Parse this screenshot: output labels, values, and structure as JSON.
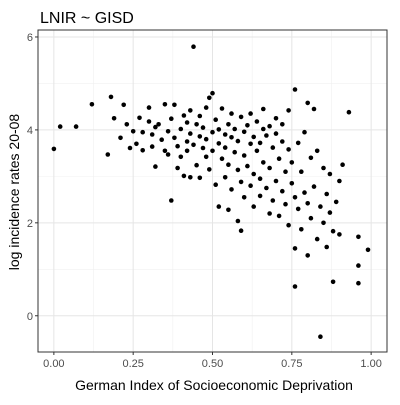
{
  "chart_data": {
    "type": "scatter",
    "title": "LNIR ~ GISD",
    "xlabel": "German Index of Socioeconomic Deprivation",
    "ylabel": "log incidence rates 20-08",
    "xlim": [
      -0.05,
      1.05
    ],
    "ylim": [
      -0.78,
      6.15
    ],
    "x_ticks": [
      "0.00",
      "0.25",
      "0.50",
      "0.75",
      "1.00"
    ],
    "y_ticks": [
      "0",
      "2",
      "4",
      "6"
    ],
    "grid": true,
    "point_color": "#000000",
    "points": [
      [
        0.0,
        3.59
      ],
      [
        0.02,
        4.07
      ],
      [
        0.07,
        4.07
      ],
      [
        0.12,
        4.55
      ],
      [
        0.17,
        3.47
      ],
      [
        0.18,
        4.71
      ],
      [
        0.19,
        4.25
      ],
      [
        0.21,
        3.83
      ],
      [
        0.22,
        4.54
      ],
      [
        0.23,
        4.12
      ],
      [
        0.24,
        3.61
      ],
      [
        0.25,
        3.97
      ],
      [
        0.26,
        3.7
      ],
      [
        0.27,
        4.26
      ],
      [
        0.28,
        3.95
      ],
      [
        0.28,
        3.56
      ],
      [
        0.3,
        4.18
      ],
      [
        0.3,
        4.48
      ],
      [
        0.31,
        3.64
      ],
      [
        0.31,
        3.9
      ],
      [
        0.32,
        4.06
      ],
      [
        0.32,
        3.21
      ],
      [
        0.33,
        4.12
      ],
      [
        0.34,
        3.79
      ],
      [
        0.35,
        3.55
      ],
      [
        0.35,
        4.55
      ],
      [
        0.36,
        3.97
      ],
      [
        0.36,
        3.47
      ],
      [
        0.37,
        4.24
      ],
      [
        0.37,
        2.48
      ],
      [
        0.38,
        3.83
      ],
      [
        0.38,
        4.54
      ],
      [
        0.39,
        3.18
      ],
      [
        0.39,
        3.65
      ],
      [
        0.4,
        4.02
      ],
      [
        0.4,
        3.42
      ],
      [
        0.41,
        4.31
      ],
      [
        0.41,
        3.01
      ],
      [
        0.42,
        3.75
      ],
      [
        0.42,
        4.16
      ],
      [
        0.42,
        3.55
      ],
      [
        0.43,
        3.92
      ],
      [
        0.43,
        2.98
      ],
      [
        0.43,
        4.42
      ],
      [
        0.44,
        5.79
      ],
      [
        0.44,
        3.68
      ],
      [
        0.45,
        4.12
      ],
      [
        0.45,
        3.24
      ],
      [
        0.46,
        3.86
      ],
      [
        0.46,
        4.3
      ],
      [
        0.46,
        2.97
      ],
      [
        0.47,
        3.61
      ],
      [
        0.47,
        4.05
      ],
      [
        0.48,
        3.42
      ],
      [
        0.48,
        4.48
      ],
      [
        0.48,
        3.8
      ],
      [
        0.49,
        4.69
      ],
      [
        0.49,
        3.15
      ],
      [
        0.5,
        4.79
      ],
      [
        0.5,
        3.95
      ],
      [
        0.5,
        3.55
      ],
      [
        0.51,
        2.82
      ],
      [
        0.51,
        4.22
      ],
      [
        0.52,
        3.71
      ],
      [
        0.52,
        2.35
      ],
      [
        0.52,
        4.01
      ],
      [
        0.53,
        3.38
      ],
      [
        0.53,
        4.46
      ],
      [
        0.54,
        3.9
      ],
      [
        0.54,
        2.98
      ],
      [
        0.54,
        3.62
      ],
      [
        0.55,
        4.12
      ],
      [
        0.55,
        2.28
      ],
      [
        0.55,
        3.25
      ],
      [
        0.56,
        3.84
      ],
      [
        0.56,
        4.35
      ],
      [
        0.56,
        2.72
      ],
      [
        0.57,
        3.52
      ],
      [
        0.57,
        4.02
      ],
      [
        0.58,
        3.14
      ],
      [
        0.58,
        2.04
      ],
      [
        0.58,
        3.76
      ],
      [
        0.59,
        4.28
      ],
      [
        0.59,
        2.88
      ],
      [
        0.59,
        1.83
      ],
      [
        0.6,
        3.45
      ],
      [
        0.6,
        3.96
      ],
      [
        0.6,
        2.55
      ],
      [
        0.61,
        4.1
      ],
      [
        0.61,
        3.22
      ],
      [
        0.62,
        3.7
      ],
      [
        0.62,
        2.8
      ],
      [
        0.62,
        4.35
      ],
      [
        0.63,
        3.05
      ],
      [
        0.63,
        3.85
      ],
      [
        0.63,
        2.35
      ],
      [
        0.64,
        3.55
      ],
      [
        0.64,
        4.18
      ],
      [
        0.65,
        2.95
      ],
      [
        0.65,
        3.72
      ],
      [
        0.65,
        2.58
      ],
      [
        0.66,
        4.02
      ],
      [
        0.66,
        3.3
      ],
      [
        0.66,
        4.45
      ],
      [
        0.67,
        2.75
      ],
      [
        0.67,
        3.88
      ],
      [
        0.68,
        3.18
      ],
      [
        0.68,
        2.2
      ],
      [
        0.68,
        4.08
      ],
      [
        0.69,
        3.62
      ],
      [
        0.69,
        2.48
      ],
      [
        0.7,
        3.92
      ],
      [
        0.7,
        2.9
      ],
      [
        0.7,
        4.25
      ],
      [
        0.71,
        3.38
      ],
      [
        0.71,
        2.15
      ],
      [
        0.72,
        3.75
      ],
      [
        0.72,
        2.68
      ],
      [
        0.72,
        4.12
      ],
      [
        0.73,
        3.1
      ],
      [
        0.73,
        2.4
      ],
      [
        0.74,
        3.58
      ],
      [
        0.74,
        1.95
      ],
      [
        0.74,
        4.42
      ],
      [
        0.75,
        2.85
      ],
      [
        0.75,
        3.3
      ],
      [
        0.76,
        4.87
      ],
      [
        0.76,
        2.55
      ],
      [
        0.76,
        1.45
      ],
      [
        0.76,
        0.63
      ],
      [
        0.77,
        3.72
      ],
      [
        0.77,
        2.3
      ],
      [
        0.78,
        3.1
      ],
      [
        0.78,
        1.86
      ],
      [
        0.79,
        2.65
      ],
      [
        0.79,
        3.95
      ],
      [
        0.8,
        2.42
      ],
      [
        0.8,
        1.3
      ],
      [
        0.8,
        4.58
      ],
      [
        0.81,
        3.4
      ],
      [
        0.81,
        2.1
      ],
      [
        0.82,
        2.78
      ],
      [
        0.82,
        4.45
      ],
      [
        0.83,
        3.55
      ],
      [
        0.83,
        1.65
      ],
      [
        0.84,
        2.35
      ],
      [
        0.84,
        -0.45
      ],
      [
        0.85,
        3.18
      ],
      [
        0.85,
        2.0
      ],
      [
        0.86,
        2.62
      ],
      [
        0.86,
        1.48
      ],
      [
        0.87,
        3.05
      ],
      [
        0.87,
        2.22
      ],
      [
        0.88,
        0.73
      ],
      [
        0.88,
        1.82
      ],
      [
        0.89,
        2.45
      ],
      [
        0.9,
        2.9
      ],
      [
        0.9,
        1.75
      ],
      [
        0.91,
        3.25
      ],
      [
        0.93,
        4.38
      ],
      [
        0.96,
        1.7
      ],
      [
        0.96,
        1.08
      ],
      [
        0.96,
        0.7
      ],
      [
        0.99,
        1.42
      ]
    ]
  }
}
